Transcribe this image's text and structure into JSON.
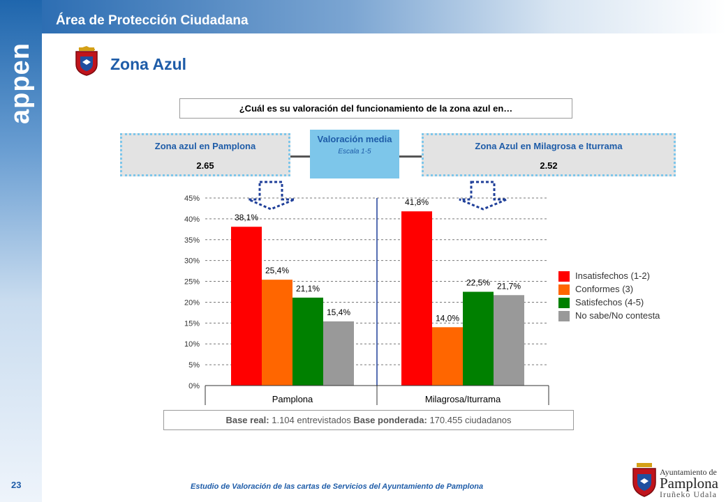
{
  "header": {
    "title": "Área de Protección Ciudadana",
    "brand": "appen"
  },
  "page": {
    "title": "Zona Azul",
    "number": "23"
  },
  "question": "¿Cuál es su valoración del funcionamiento de la zona azul en…",
  "left_box": {
    "title": "Zona azul en Pamplona",
    "value": "2.65"
  },
  "center_box": {
    "title": "Valoración media",
    "subtitle": "Escala 1-5"
  },
  "right_box": {
    "title": "Zona Azul en Milagrosa e  Iturrama",
    "value": "2.52"
  },
  "base": {
    "real_label": "Base real:",
    "real_value": "1.104 entrevistados",
    "pond_label": "Base ponderada:",
    "pond_value": "170.455 ciudadanos"
  },
  "footer": {
    "text": "Estudio de Valoración de las cartas de Servicios del Ayuntamiento  de Pamplona"
  },
  "ayuntamiento": {
    "line1": "Ayuntamiento de",
    "line2": "Pamplona",
    "line3": "Iruñeko Udala"
  },
  "colors": {
    "brand_blue": "#1e5ca8",
    "dotted_border": "#7dc6ea"
  },
  "chart_data": {
    "type": "bar",
    "categories": [
      "Pamplona",
      "Milagrosa/Iturrama"
    ],
    "series": [
      {
        "name": "Insatisfechos (1-2)",
        "values": [
          38.1,
          41.8
        ],
        "labels": [
          "38,1%",
          "41,8%"
        ],
        "color": "#ff0000"
      },
      {
        "name": "Conformes (3)",
        "values": [
          25.4,
          14.0
        ],
        "labels": [
          "25,4%",
          "14,0%"
        ],
        "color": "#ff6600"
      },
      {
        "name": "Satisfechos (4-5)",
        "values": [
          21.1,
          22.5
        ],
        "labels": [
          "21,1%",
          "22,5%"
        ],
        "color": "#008000"
      },
      {
        "name": "No sabe/No contesta",
        "values": [
          15.4,
          21.7
        ],
        "labels": [
          "15,4%",
          "21,7%"
        ],
        "color": "#999999"
      }
    ],
    "yticks": [
      "0%",
      "5%",
      "10%",
      "15%",
      "20%",
      "25%",
      "30%",
      "35%",
      "40%",
      "45%"
    ],
    "ylim": [
      0,
      45
    ],
    "grid": true,
    "legend": "right"
  }
}
